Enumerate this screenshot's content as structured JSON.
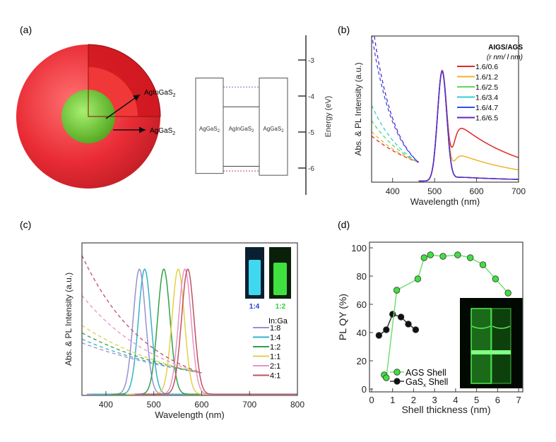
{
  "panel_a": {
    "label": "(a)",
    "core_label": "AgInGaS",
    "core_sub": "2",
    "shell_label": "AgGaS",
    "shell_sub": "2",
    "colors": {
      "shell": "#e8202a",
      "core": "#7ad23a"
    },
    "energy_diagram": {
      "axis_label": "Energy (eV)",
      "ticks": [
        -3,
        -4,
        -5,
        -6
      ],
      "tick_labels": [
        "-3",
        "-4",
        "-5",
        "-6"
      ],
      "blocks": [
        {
          "label": "AgGaS",
          "sub": "2",
          "cb": -3.5,
          "vb": -6.15
        },
        {
          "label": "AgInGaS",
          "sub": "2",
          "cb": -4.3,
          "vb": -5.95
        },
        {
          "label": "AgGaS",
          "sub": "2",
          "cb": -3.5,
          "vb": -6.2
        }
      ],
      "dashed_levels": [
        {
          "energy": -3.75,
          "color": "#7070c0"
        },
        {
          "energy": -6.08,
          "color": "#c04060"
        }
      ]
    }
  },
  "chart_data": [
    {
      "panel": "(b)",
      "type": "line",
      "xlabel": "Wavelength (nm)",
      "ylabel": "Abs. & PL Intensity (a.u.)",
      "xlim": [
        350,
        700
      ],
      "ylim": [
        0,
        1.33
      ],
      "xticks": [
        400,
        500,
        600,
        700
      ],
      "xtick_labels": [
        "400",
        "500",
        "600",
        "700"
      ],
      "legend_title": "AIGS/AGS",
      "legend_subtitle": "(r nm/ l nm)",
      "legend_position": "top-right",
      "series": [
        {
          "name": "1.6/0.6",
          "color": "#e02828",
          "pl_peak_nm": 518,
          "pl_tail_600nm": 0.42,
          "abs_350nm": 0.42
        },
        {
          "name": "1.6/1.2",
          "color": "#f0b428",
          "pl_peak_nm": 518,
          "pl_tail_600nm": 0.2,
          "abs_350nm": 0.46
        },
        {
          "name": "1.6/2.5",
          "color": "#5ed85e",
          "pl_peak_nm": 518,
          "pl_tail_600nm": 0.03,
          "abs_350nm": 0.56
        },
        {
          "name": "1.6/3.4",
          "color": "#2cd0d0",
          "pl_peak_nm": 518,
          "pl_tail_600nm": 0.03,
          "abs_350nm": 0.7
        },
        {
          "name": "1.6/4.7",
          "color": "#3050f0",
          "pl_peak_nm": 518,
          "pl_tail_600nm": 0.03,
          "abs_350nm": 1.35
        },
        {
          "name": "1.6/6.5",
          "color": "#6424c4",
          "pl_peak_nm": 518,
          "pl_tail_600nm": 0.03,
          "abs_350nm": 1.5
        }
      ]
    },
    {
      "panel": "(c)",
      "type": "line",
      "xlabel": "Wavelength (nm)",
      "ylabel": "Abs. & PL Intensity (a.u.)",
      "xlim": [
        350,
        800
      ],
      "ylim": [
        0,
        1.22
      ],
      "xticks": [
        400,
        500,
        600,
        700,
        800
      ],
      "xtick_labels": [
        "400",
        "500",
        "600",
        "700",
        "800"
      ],
      "legend_title": "In:Ga",
      "legend_position": "right",
      "inset_labels": [
        {
          "text": "1:4",
          "color": "#2a3ad8"
        },
        {
          "text": "1:2",
          "color": "#30d030"
        }
      ],
      "series": [
        {
          "name": "1:8",
          "color": "#9a90d0",
          "pl_peak_nm": 470,
          "abs_350nm": 0.42
        },
        {
          "name": "1:4",
          "color": "#38b0c8",
          "pl_peak_nm": 481,
          "abs_350nm": 0.45
        },
        {
          "name": "1:2",
          "color": "#30a048",
          "pl_peak_nm": 521,
          "abs_350nm": 0.5
        },
        {
          "name": "1:1",
          "color": "#e2d048",
          "pl_peak_nm": 551,
          "abs_350nm": 0.56
        },
        {
          "name": "2:1",
          "color": "#e894c4",
          "pl_peak_nm": 565,
          "abs_350nm": 0.8
        },
        {
          "name": "4:1",
          "color": "#c05064",
          "pl_peak_nm": 571,
          "abs_350nm": 1.12
        }
      ]
    },
    {
      "panel": "(d)",
      "type": "scatter",
      "xlabel": "Shell thickness (nm)",
      "ylabel": "PL QY (%)",
      "xlim": [
        -0.1,
        7.2
      ],
      "ylim": [
        -2,
        104
      ],
      "xticks": [
        0,
        1,
        2,
        3,
        4,
        5,
        6,
        7
      ],
      "xtick_labels": [
        "0",
        "1",
        "2",
        "3",
        "4",
        "5",
        "6",
        "7"
      ],
      "yticks": [
        0,
        20,
        40,
        60,
        80,
        100
      ],
      "ytick_labels": [
        "0",
        "20",
        "40",
        "60",
        "80",
        "100"
      ],
      "legend_position": "bottom-left",
      "series": [
        {
          "name": "AGS Shell",
          "color": "#40e040",
          "x": [
            0.6,
            0.7,
            1.2,
            2.2,
            2.5,
            2.8,
            3.4,
            4.1,
            4.7,
            5.3,
            5.9,
            6.5
          ],
          "y": [
            10,
            8,
            70,
            78,
            93,
            95,
            94,
            95,
            93,
            88,
            78,
            68
          ]
        },
        {
          "name": "GaS",
          "name_sub": "x",
          "name_suffix": " Shell",
          "color": "#111111",
          "x": [
            0.35,
            0.7,
            1.0,
            1.4,
            1.75,
            2.1
          ],
          "y": [
            38,
            42,
            53,
            51,
            46,
            42
          ]
        }
      ]
    }
  ]
}
